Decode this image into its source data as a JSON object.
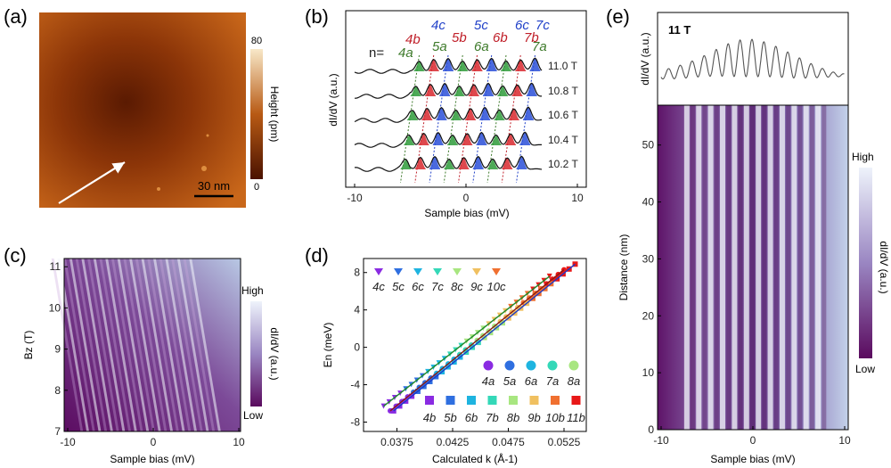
{
  "figure": {
    "panels": [
      {
        "label": "(a)",
        "type": "topography",
        "scalebar": "30 nm",
        "colorbar": {
          "label": "Height (pm)",
          "max": "80",
          "min": "0"
        },
        "colors": {
          "low": "#4a1200",
          "mid": "#b85a14",
          "high": "#f8e8c8"
        }
      },
      {
        "label": "(b)",
        "type": "spectra",
        "ylabel": "dI/dV (a.u.)",
        "xlabel": "Sample bias (mV)",
        "xticks": [
          "-10",
          "0",
          "10"
        ],
        "field_labels": [
          "11.0 T",
          "10.8 T",
          "10.6 T",
          "10.4 T",
          "10.2 T"
        ],
        "peak_prefix": "n=",
        "peak_labels": [
          {
            "text": "4a",
            "color": "#3d7a2a"
          },
          {
            "text": "4b",
            "color": "#c0202a"
          },
          {
            "text": "4c",
            "color": "#2040c8"
          },
          {
            "text": "5a",
            "color": "#3d7a2a"
          },
          {
            "text": "5b",
            "color": "#c0202a"
          },
          {
            "text": "5c",
            "color": "#2040c8"
          },
          {
            "text": "6a",
            "color": "#3d7a2a"
          },
          {
            "text": "6b",
            "color": "#c0202a"
          },
          {
            "text": "6c",
            "color": "#2040c8"
          },
          {
            "text": "7a",
            "color": "#3d7a2a"
          },
          {
            "text": "7b",
            "color": "#c0202a"
          },
          {
            "text": "7c",
            "color": "#2040c8"
          }
        ],
        "peak_fill_colors": [
          "#2e9b3a",
          "#d8282e",
          "#2a4fd8"
        ]
      },
      {
        "label": "(c)",
        "type": "colormap",
        "xlabel": "Sample bias (mV)",
        "ylabel": "Bz (T)",
        "xticks": [
          "-10",
          "0",
          "10"
        ],
        "yticks": [
          "7",
          "8",
          "9",
          "10",
          "11"
        ],
        "colorbar": {
          "label": "dI/dV (a.u.)",
          "high": "High",
          "low": "Low"
        },
        "colors": {
          "low": "#5a0a5e",
          "mid": "#9a86c2",
          "high": "#eef3fb"
        }
      },
      {
        "label": "(d)",
        "type": "scatter",
        "xlabel": "Calculated k (Å-1)",
        "ylabel": "En (meV)",
        "xticks": [
          "0.0375",
          "0.0425",
          "0.0475",
          "0.0525"
        ],
        "yticks": [
          "-8",
          "-4",
          "0",
          "4",
          "8"
        ],
        "legend_c": [
          "4c",
          "5c",
          "6c",
          "7c",
          "8c",
          "9c",
          "10c"
        ],
        "legend_a": [
          "4a",
          "5a",
          "6a",
          "7a",
          "8a"
        ],
        "legend_b": [
          "4b",
          "5b",
          "6b",
          "7b",
          "8b",
          "9b",
          "10b",
          "11b"
        ],
        "legend_colors": [
          "#8a2be2",
          "#2f6fe0",
          "#1eb4e0",
          "#34d8b8",
          "#a8e680",
          "#f0c060",
          "#f07030",
          "#e81818"
        ],
        "fit_colors": [
          "#1f8a2a",
          "#8a1a12",
          "#1a3ac8"
        ]
      },
      {
        "label": "(e)",
        "type": "linecut",
        "spectrum_label": "11 T",
        "spectrum_ylabel": "dI/dV (a.u.)",
        "xlabel": "Sample bias (mV)",
        "ylabel": "Distance (nm)",
        "xticks": [
          "-10",
          "0",
          "10"
        ],
        "yticks": [
          "0",
          "10",
          "20",
          "30",
          "40",
          "50"
        ],
        "colorbar": {
          "label": "dI/dV (a.u.)",
          "high": "High",
          "low": "Low"
        },
        "colors": {
          "low": "#5a0a5e",
          "mid": "#9a86c2",
          "high": "#eef3fb"
        }
      }
    ]
  },
  "chart_data": [
    {
      "type": "line",
      "panel": "(b)",
      "xlabel": "Sample bias (mV)",
      "ylabel": "dI/dV (a.u.)",
      "xlim": [
        -10,
        10
      ],
      "peak_period_mV": 1.3,
      "series": [
        {
          "name": "11.0 T",
          "peak_x": [
            -4.2,
            -2.9,
            -1.6,
            -0.3,
            1.0,
            2.3,
            3.6,
            4.9,
            6.2
          ]
        },
        {
          "name": "10.8 T",
          "peak_x": [
            -4.5,
            -3.2,
            -1.9,
            -0.6,
            0.7,
            2.0,
            3.3,
            4.6,
            5.9
          ]
        },
        {
          "name": "10.6 T",
          "peak_x": [
            -4.8,
            -3.5,
            -2.2,
            -0.9,
            0.4,
            1.7,
            3.0,
            4.3,
            5.6
          ]
        },
        {
          "name": "10.4 T",
          "peak_x": [
            -5.1,
            -3.8,
            -2.5,
            -1.2,
            0.1,
            1.4,
            2.7,
            4.0,
            5.3
          ]
        },
        {
          "name": "10.2 T",
          "peak_x": [
            -5.4,
            -4.1,
            -2.8,
            -1.5,
            -0.2,
            1.1,
            2.4,
            3.7,
            5.0
          ]
        }
      ]
    },
    {
      "type": "scatter",
      "panel": "(d)",
      "xlabel": "Calculated k (Å-1)",
      "ylabel": "En (meV)",
      "xlim": [
        0.0345,
        0.0545
      ],
      "ylim": [
        -9,
        9.5
      ],
      "series": [
        {
          "name": "c",
          "fit": [
            [
              0.0363,
              -6.3
            ],
            [
              0.0512,
              7.6
            ]
          ]
        },
        {
          "name": "a",
          "fit": [
            [
              0.0369,
              -6.8
            ],
            [
              0.0525,
              8.3
            ]
          ]
        },
        {
          "name": "b",
          "fit": [
            [
              0.0372,
              -6.8
            ],
            [
              0.0535,
              8.9
            ]
          ]
        }
      ]
    },
    {
      "type": "line",
      "panel": "(e) top",
      "xlabel": "Sample bias (mV)",
      "ylabel": "dI/dV (a.u.)",
      "xlim": [
        -10,
        10
      ],
      "peak_period_mV": 1.3
    },
    {
      "type": "heatmap",
      "panel": "(c)",
      "xlabel": "Sample bias (mV)",
      "ylabel": "Bz (T)",
      "xlim": [
        -10,
        10
      ],
      "ylim": [
        7,
        11.2
      ]
    },
    {
      "type": "heatmap",
      "panel": "(e)",
      "xlabel": "Sample bias (mV)",
      "ylabel": "Distance (nm)",
      "xlim": [
        -10,
        10
      ],
      "ylim": [
        0,
        57
      ]
    }
  ]
}
